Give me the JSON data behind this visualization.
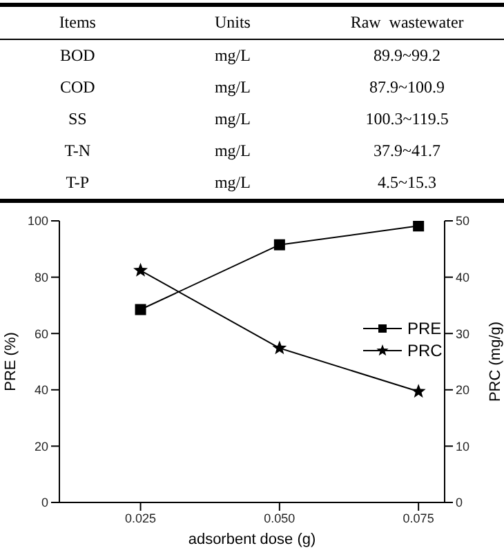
{
  "chart_data": [
    {
      "type": "other",
      "categories": [
        "Items",
        "Units",
        "Raw  wastewater"
      ],
      "annotations": [
        "BOD",
        "mg/L",
        "89.9~99.2",
        "COD",
        "mg/L",
        "87.9~100.9",
        "SS",
        "mg/L",
        "100.3~119.5",
        "T-N",
        "mg/L",
        "37.9~41.7",
        "T-P",
        "mg/L",
        "4.5~15.3"
      ]
    },
    {
      "type": "line",
      "xlabel": "adsorbent dose (g)",
      "ylabel": "PRE (%)",
      "y2label": "PRC (mg/g)",
      "x": [
        0.025,
        0.05,
        0.075
      ],
      "series": [
        {
          "name": "PRE",
          "color": "#000000",
          "marker": "square",
          "values": [
            68.5,
            91.5,
            98.2
          ]
        },
        {
          "name": "PRC",
          "color": "#000000",
          "marker": "star",
          "axis": "y2",
          "values": [
            41.2,
            27.4,
            19.7
          ]
        }
      ],
      "xlim": [
        0.0104,
        0.0797
      ],
      "xticks": [
        {
          "value": 0.025,
          "label": "0.025"
        },
        {
          "value": 0.05,
          "label": "0.050"
        },
        {
          "value": 0.075,
          "label": "0.075"
        }
      ],
      "ylim": [
        0,
        100
      ],
      "yticks": [
        0,
        20,
        40,
        60,
        80,
        100
      ],
      "y2lim": [
        0,
        50
      ],
      "y2ticks": [
        0,
        10,
        20,
        30,
        40,
        50
      ],
      "legend": "right",
      "grid": false,
      "line_style": "solid"
    }
  ]
}
